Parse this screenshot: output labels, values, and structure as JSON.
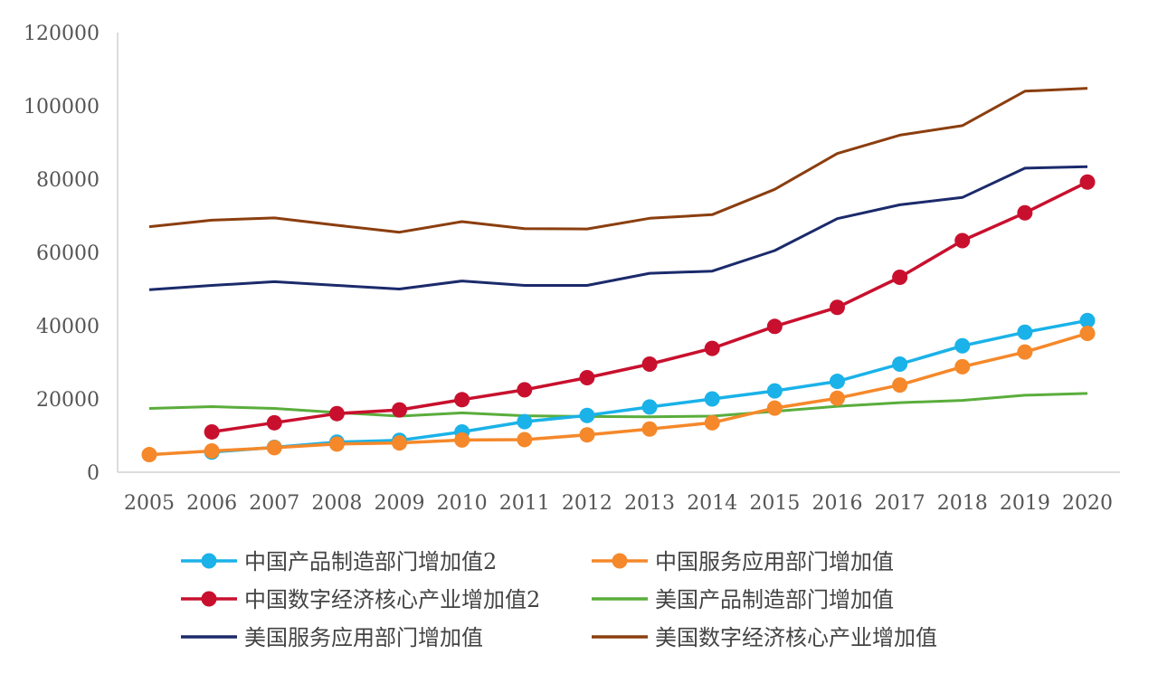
{
  "chart_data": {
    "type": "line",
    "title": "",
    "xlabel": "",
    "ylabel": "",
    "x": [
      "2005",
      "2006",
      "2007",
      "2008",
      "2009",
      "2010",
      "2011",
      "2012",
      "2013",
      "2014",
      "2015",
      "2016",
      "2017",
      "2018",
      "2019",
      "2020"
    ],
    "ylim": [
      0,
      120000
    ],
    "yticks": [
      "0",
      "20000",
      "40000",
      "60000",
      "80000",
      "100000",
      "120000"
    ],
    "grid": false,
    "legend_position": "bottom",
    "series": [
      {
        "name": "中国产品制造部门增加值2",
        "color": "#1ab2e8",
        "marker": true,
        "values": [
          null,
          5500,
          6800,
          8200,
          8700,
          11000,
          13800,
          15500,
          17800,
          20000,
          22200,
          24800,
          29500,
          34500,
          38200,
          41400
        ]
      },
      {
        "name": "中国服务应用部门增加值",
        "color": "#f5882a",
        "marker": true,
        "values": [
          4800,
          5800,
          6700,
          7700,
          8000,
          8800,
          8900,
          10200,
          11800,
          13500,
          17500,
          20200,
          23800,
          28800,
          32800,
          37900
        ]
      },
      {
        "name": "中国数字经济核心产业增加值2",
        "color": "#c8102e",
        "marker": true,
        "values": [
          null,
          11000,
          13500,
          16000,
          17000,
          19800,
          22500,
          25800,
          29500,
          33800,
          39800,
          45000,
          53200,
          63200,
          70800,
          79200
        ]
      },
      {
        "name": "美国产品制造部门增加值",
        "color": "#5aad3c",
        "marker": false,
        "values": [
          17400,
          17900,
          17400,
          16300,
          15300,
          16200,
          15400,
          15200,
          15100,
          15300,
          16600,
          18000,
          19000,
          19600,
          21000,
          21500
        ]
      },
      {
        "name": "美国服务应用部门增加值",
        "color": "#1b2a6b",
        "marker": false,
        "values": [
          49800,
          51000,
          52000,
          51000,
          50000,
          52200,
          51000,
          51000,
          54300,
          54900,
          60500,
          69200,
          73000,
          75000,
          83000,
          83400
        ]
      },
      {
        "name": "美国数字经济核心产业增加值",
        "color": "#8b3e0f",
        "marker": false,
        "values": [
          67000,
          68800,
          69400,
          67400,
          65500,
          68400,
          66500,
          66400,
          69300,
          70300,
          77200,
          87000,
          92000,
          94600,
          104000,
          104800
        ]
      }
    ]
  }
}
